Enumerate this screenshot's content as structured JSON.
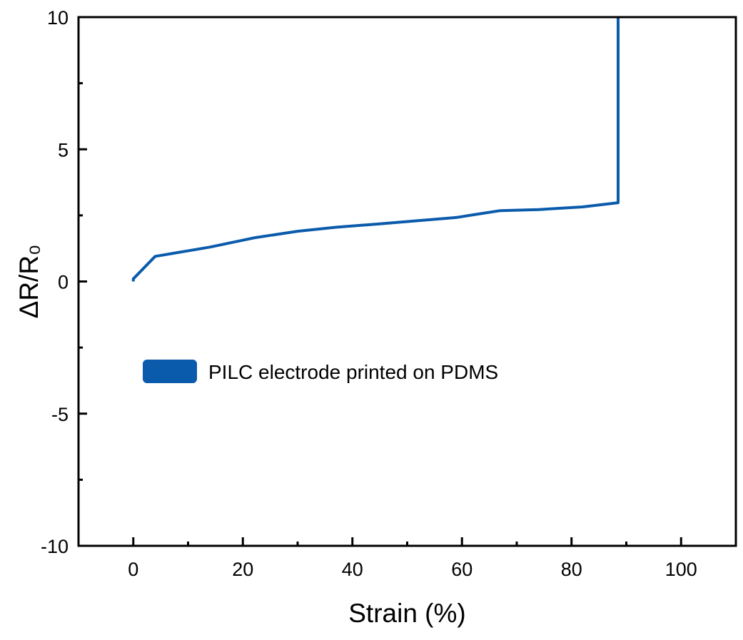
{
  "chart_data": {
    "type": "line",
    "xlabel": "Strain (%)",
    "ylabel": "ΔR/R₀",
    "xlim": [
      -10,
      110
    ],
    "ylim": [
      -10,
      10
    ],
    "x_ticks": [
      0,
      20,
      40,
      60,
      80,
      100
    ],
    "x_tick_labels": [
      "0",
      "20",
      "40",
      "60",
      "80",
      "100"
    ],
    "x_minor_ticks": [
      10,
      30,
      50,
      70,
      90
    ],
    "y_ticks": [
      -10,
      -5,
      0,
      5,
      10
    ],
    "y_tick_labels": [
      "-10",
      "-5",
      "0",
      "5",
      "10"
    ],
    "y_minor_ticks": [
      -7.5,
      -2.5,
      2.5,
      7.5
    ],
    "grid": false,
    "legend_position": "center-left",
    "series": [
      {
        "name": "PILC electrode printed on PDMS",
        "color": "#0a5bab",
        "x": [
          0,
          0,
          4,
          14,
          22,
          30,
          37,
          45,
          52,
          59,
          62,
          67,
          74,
          82,
          88.5,
          88.5
        ],
        "y": [
          0,
          0.1,
          0.95,
          1.3,
          1.65,
          1.9,
          2.05,
          2.18,
          2.3,
          2.42,
          2.52,
          2.68,
          2.72,
          2.82,
          2.98,
          10
        ]
      }
    ]
  }
}
